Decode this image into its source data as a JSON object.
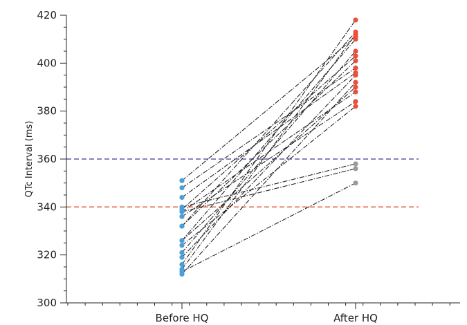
{
  "chart_data": {
    "type": "line",
    "title": "",
    "xlabel": "",
    "ylabel": "QTc Interval (ms)",
    "categories": [
      "Before HQ",
      "After HQ"
    ],
    "ylim": [
      300,
      420
    ],
    "yticks": [
      300,
      320,
      340,
      360,
      380,
      400,
      420
    ],
    "grid": false,
    "reference_lines": [
      {
        "y": 360,
        "color": "#5b5ba8",
        "style": "dashed"
      },
      {
        "y": 340,
        "color": "#e8694a",
        "style": "dashed"
      }
    ],
    "colors": {
      "before": "#4a9fd8",
      "after_high": "#e8503a",
      "after_low": "#9a9a9a",
      "pair_line": "#222222"
    },
    "pairs": [
      {
        "before": 351,
        "after": 411
      },
      {
        "before": 348,
        "after": 398
      },
      {
        "before": 344,
        "after": 396
      },
      {
        "before": 340,
        "after": 358
      },
      {
        "before": 339,
        "after": 403
      },
      {
        "before": 338,
        "after": 388
      },
      {
        "before": 338,
        "after": 356
      },
      {
        "before": 336,
        "after": 384
      },
      {
        "before": 332,
        "after": 401
      },
      {
        "before": 332,
        "after": 413
      },
      {
        "before": 326,
        "after": 410
      },
      {
        "before": 326,
        "after": 390
      },
      {
        "before": 324,
        "after": 382
      },
      {
        "before": 321,
        "after": 405
      },
      {
        "before": 319,
        "after": 395
      },
      {
        "before": 316,
        "after": 418
      },
      {
        "before": 314,
        "after": 412
      },
      {
        "before": 313,
        "after": 350
      },
      {
        "before": 312,
        "after": 392
      }
    ]
  }
}
